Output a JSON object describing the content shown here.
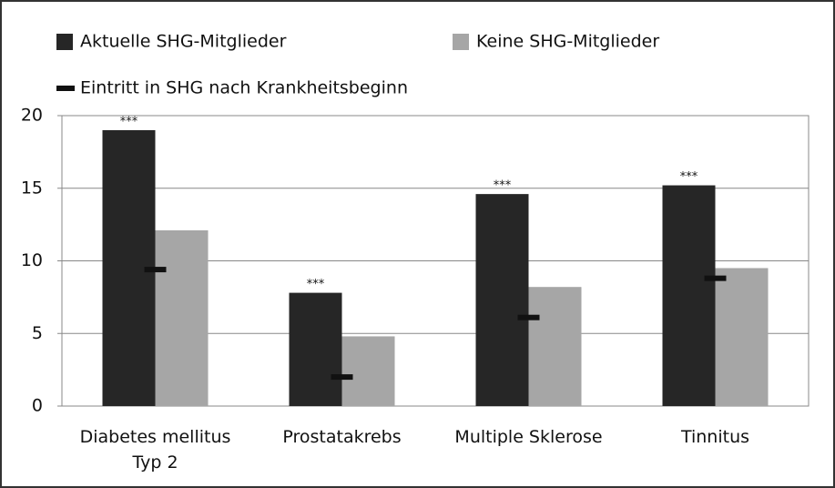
{
  "chart_data": {
    "type": "bar",
    "categories": [
      "Diabetes mellitus Typ 2",
      "Prostatakrebs",
      "Multiple Sklerose",
      "Tinnitus"
    ],
    "series": [
      {
        "name": "Aktuelle SHG-Mitglieder",
        "color": "#262626",
        "style": "bar",
        "values": [
          19.0,
          7.8,
          14.6,
          15.2
        ]
      },
      {
        "name": "Keine SHG-Mitglieder",
        "color": "#a6a6a6",
        "style": "bar",
        "values": [
          12.1,
          4.8,
          8.2,
          9.5
        ]
      },
      {
        "name": "Eintritt in SHG nach Krankheitsbeginn",
        "color": "#111111",
        "style": "marker",
        "values": [
          9.4,
          2.0,
          6.1,
          8.8
        ]
      }
    ],
    "annotations": [
      "***",
      "***",
      "***",
      "***"
    ],
    "ylim": [
      0,
      20
    ],
    "yticks": [
      0,
      5,
      10,
      15,
      20
    ],
    "grid": true,
    "legend": "top"
  }
}
